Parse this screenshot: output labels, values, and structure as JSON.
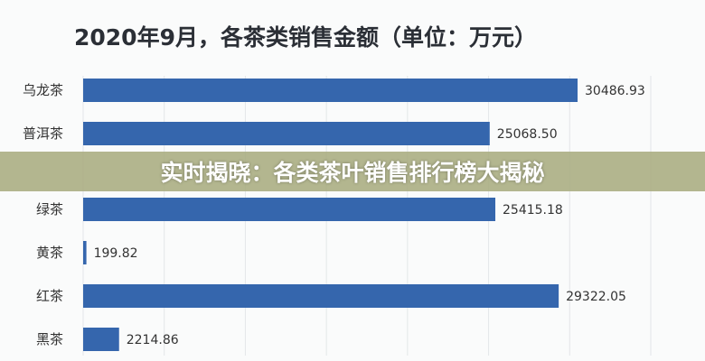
{
  "chart_data": {
    "type": "bar",
    "orientation": "horizontal",
    "title": "2020年9月，各茶类销售金额（单位：万元）",
    "categories": [
      "乌龙茶",
      "普洱茶",
      "绿茶",
      "黄茶",
      "红茶",
      "黑茶"
    ],
    "values": [
      30486.93,
      25068.5,
      25415.18,
      199.82,
      29322.05,
      2214.86
    ],
    "value_labels": [
      "30486.93",
      "25068.50",
      "25415.18",
      "199.82",
      "29322.05",
      "2214.86"
    ],
    "xlim": [
      0,
      35000
    ],
    "grid": true,
    "bar_color": "#3566ad"
  },
  "overlay": {
    "headline": "实时揭晓：各类茶叶销售排行榜大揭秘",
    "color": "#a8ac80"
  }
}
